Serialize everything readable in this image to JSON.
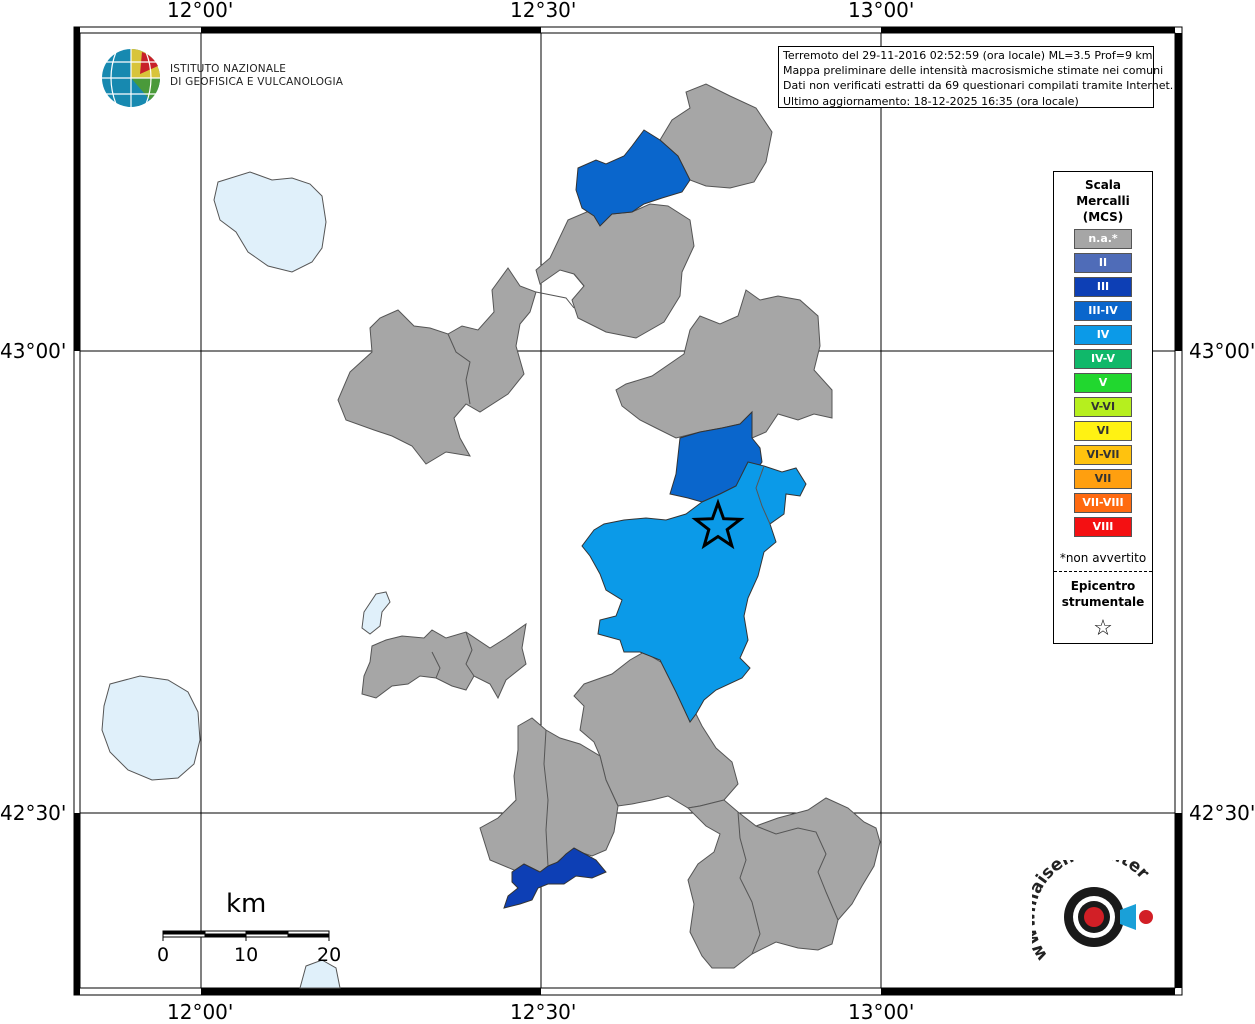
{
  "map": {
    "info_lines": [
      "Terremoto del 29-11-2016 02:52:59 (ora locale) ML=3.5 Prof=9 km",
      "Mappa preliminare delle intensità macrosismiche stimate nei comuni",
      "Dati non verificati estratti da 69 questionari compilati tramite Internet.",
      "Ultimo aggiornamento: 18-12-2025 16:35 (ora locale)"
    ],
    "lon_labels": [
      "12°00'",
      "12°30'",
      "13°00'"
    ],
    "lat_labels": [
      "43°00'",
      "42°30'"
    ],
    "institute": [
      "ISTITUTO NAZIONALE",
      "DI GEOFISICA E VULCANOLOGIA"
    ],
    "scale_bar": {
      "unit": "km",
      "ticks": [
        "0",
        "10",
        "20"
      ]
    },
    "legend": {
      "title": [
        "Scala",
        "Mercalli",
        "(MCS)"
      ],
      "items": [
        {
          "label": "n.a.*",
          "color": "#a6a6a6"
        },
        {
          "label": "II",
          "color": "#4f6cb8"
        },
        {
          "label": "III",
          "color": "#0d3fb5"
        },
        {
          "label": "III-IV",
          "color": "#0a66cc"
        },
        {
          "label": "IV",
          "color": "#0b9ae8"
        },
        {
          "label": "IV-V",
          "color": "#10b86a"
        },
        {
          "label": "V",
          "color": "#21d72f"
        },
        {
          "label": "V-VI",
          "color": "#b6ef1e"
        },
        {
          "label": "VI",
          "color": "#fff213"
        },
        {
          "label": "VI-VII",
          "color": "#ffc20e"
        },
        {
          "label": "VII",
          "color": "#ff9f0f"
        },
        {
          "label": "VII-VIII",
          "color": "#ff6a10"
        },
        {
          "label": "VIII",
          "color": "#f41012"
        }
      ],
      "note": "*non avvertito",
      "epicenter_label": [
        "Epicentro",
        "strumentale"
      ],
      "epicenter_symbol": "☆"
    },
    "colors": {
      "na": "#a6a6a6",
      "III": "#0d3fb5",
      "III_IV": "#0a66cc",
      "IV": "#0b9ae8",
      "lake": "#e0f0fa"
    },
    "logo_text": "www.haisentitoilterremoto.it"
  }
}
